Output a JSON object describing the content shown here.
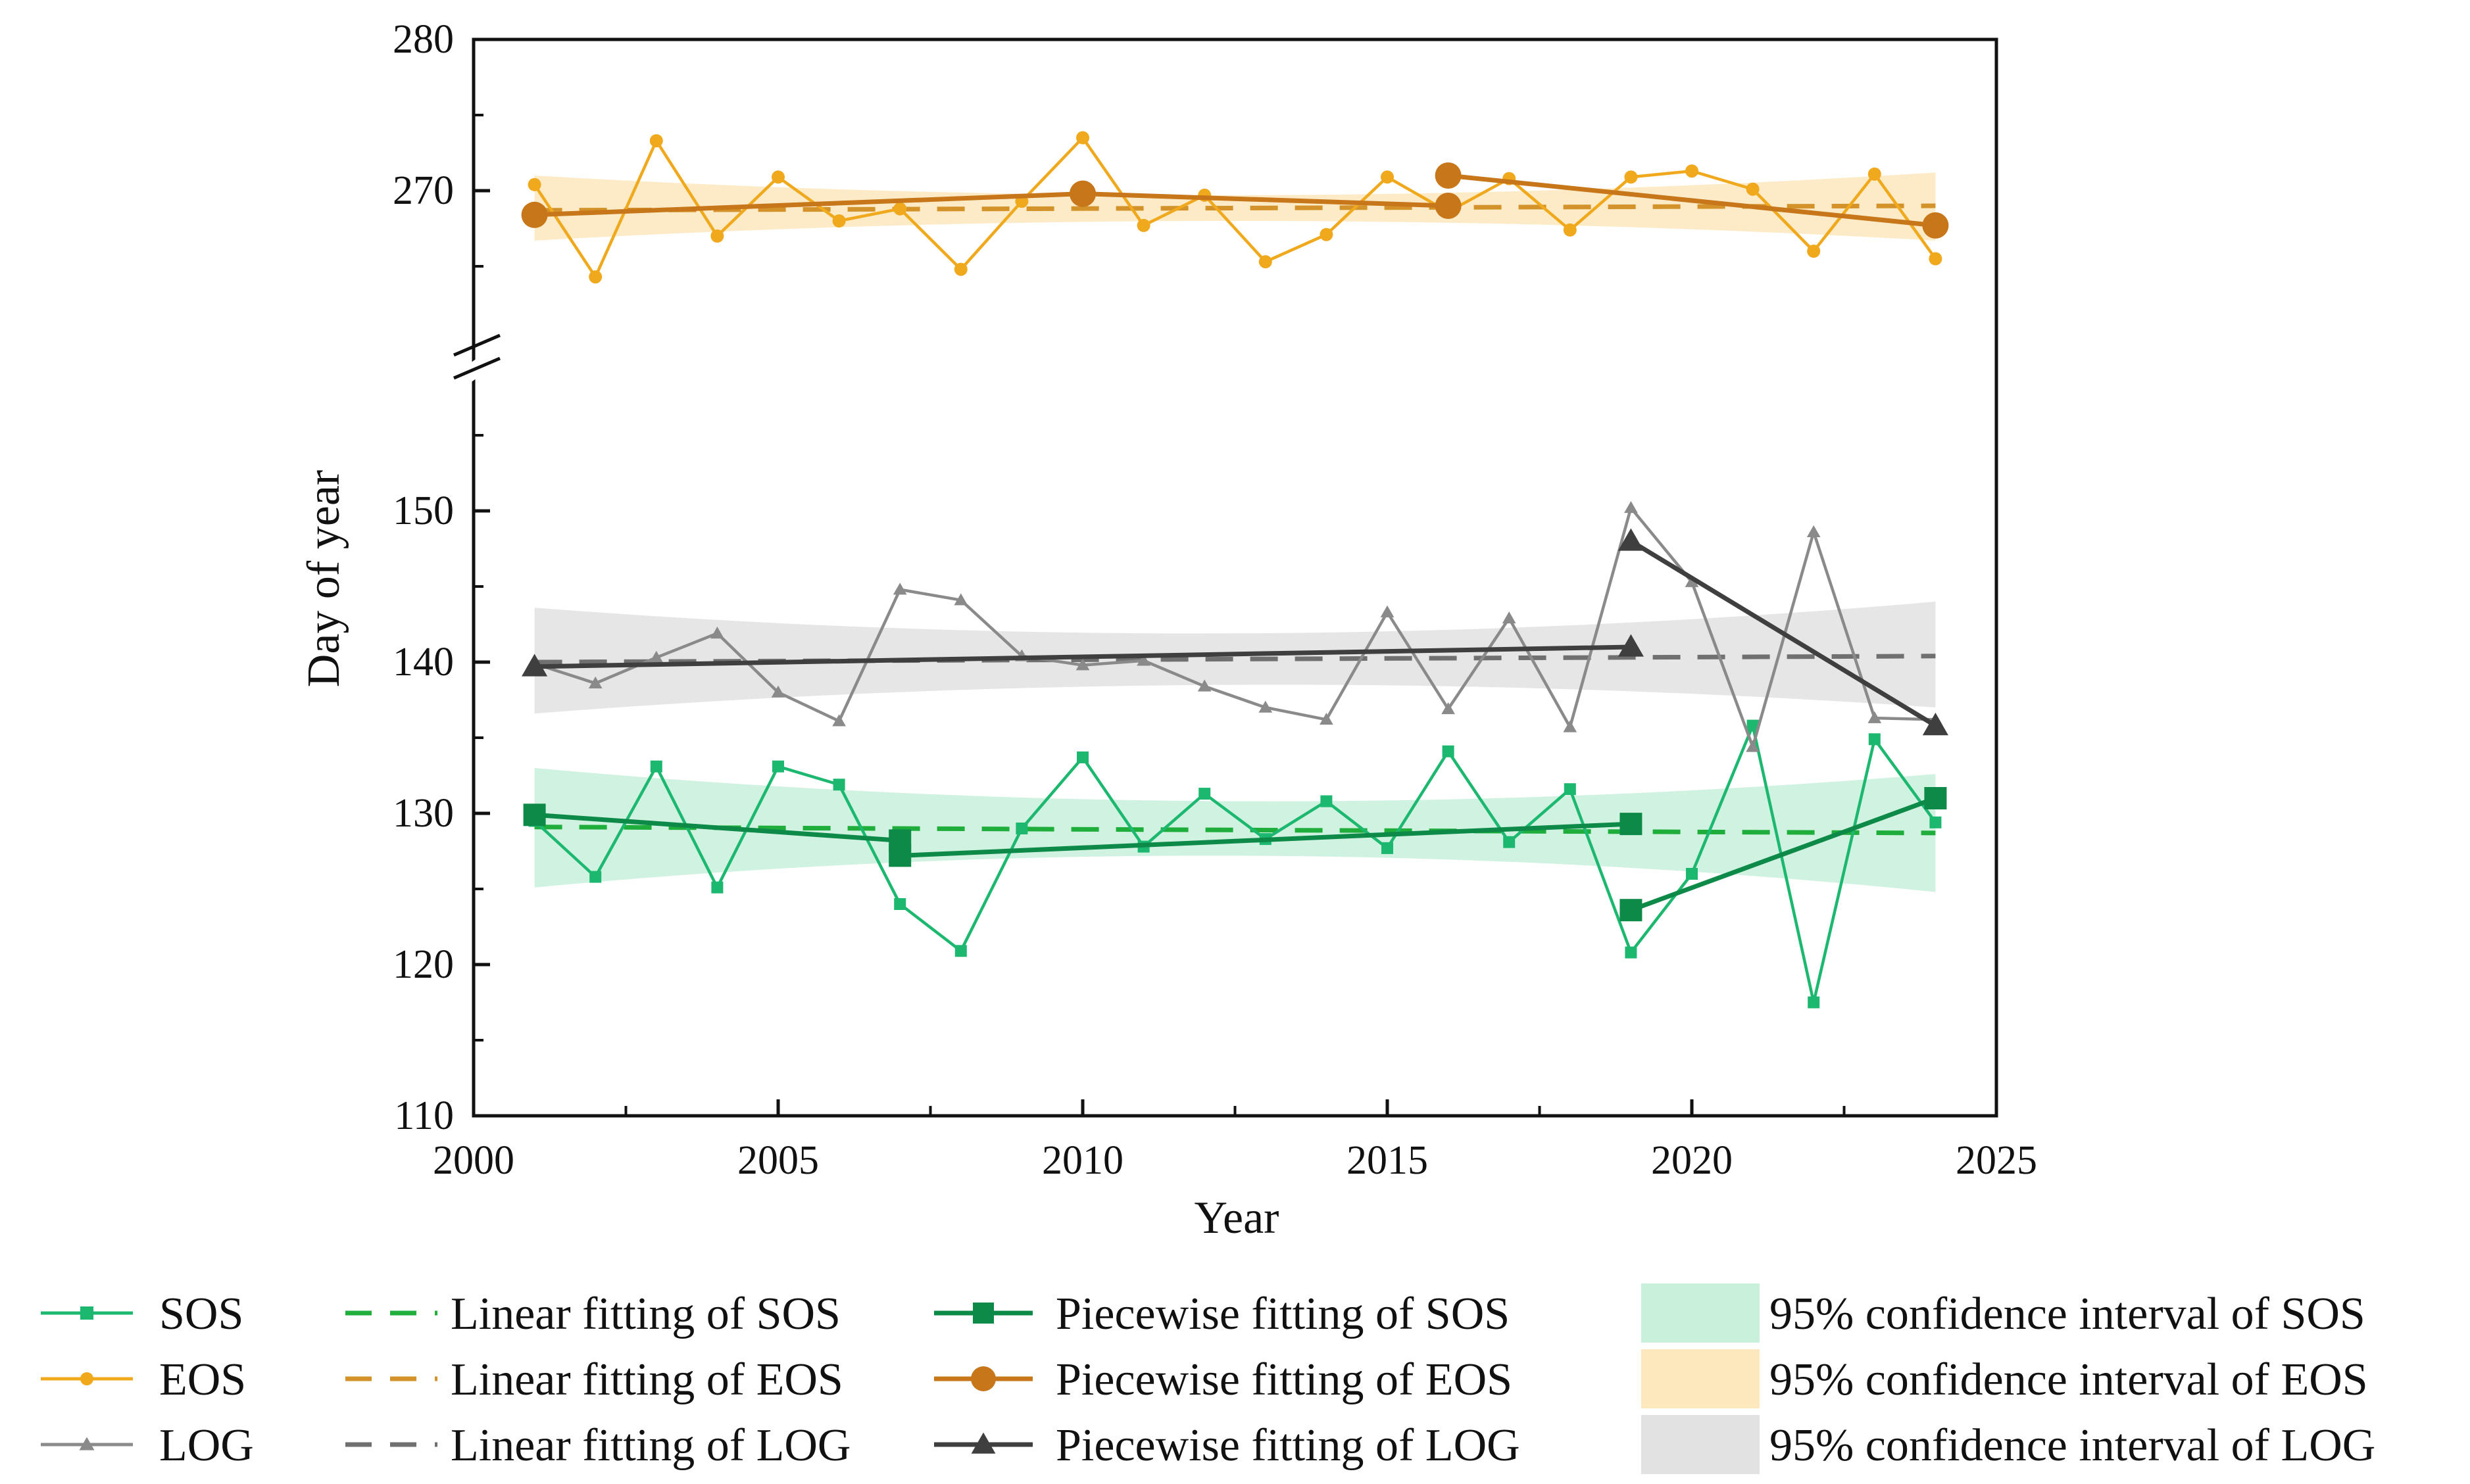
{
  "chart_data": {
    "type": "line",
    "title": "",
    "xlabel": "Year",
    "ylabel": "Day of year",
    "xlim": [
      2000,
      2025
    ],
    "ylim_lower": [
      110,
      160
    ],
    "ylim_upper": [
      260,
      280
    ],
    "axis_break": "between 160 and 260",
    "x_ticks": [
      "2000",
      "2005",
      "2010",
      "2015",
      "2020",
      "2025"
    ],
    "y_ticks_lower": [
      "110",
      "120",
      "130",
      "140",
      "150"
    ],
    "y_ticks_upper": [
      "270",
      "280"
    ],
    "x": [
      2001,
      2002,
      2003,
      2004,
      2005,
      2006,
      2007,
      2008,
      2009,
      2010,
      2011,
      2012,
      2013,
      2014,
      2015,
      2016,
      2017,
      2018,
      2019,
      2020,
      2021,
      2022,
      2023,
      2024
    ],
    "series": [
      {
        "key": "sos",
        "name": "SOS",
        "color": "#1db870",
        "marker": "square",
        "values": [
          129.5,
          125.8,
          133.1,
          125.1,
          133.1,
          131.9,
          124.0,
          120.9,
          129.0,
          133.7,
          127.8,
          131.3,
          128.3,
          130.8,
          127.7,
          134.1,
          128.1,
          131.6,
          120.8,
          126.0,
          135.8,
          117.5,
          134.9,
          129.4
        ]
      },
      {
        "key": "eos",
        "name": "EOS",
        "color": "#f0a81c",
        "marker": "circle",
        "values": [
          270.4,
          264.3,
          273.3,
          267.0,
          270.9,
          268.0,
          268.8,
          264.8,
          269.3,
          273.5,
          267.7,
          269.7,
          265.3,
          267.1,
          270.9,
          268.6,
          270.8,
          267.4,
          270.9,
          271.3,
          270.1,
          266.0,
          271.1,
          265.5
        ]
      },
      {
        "key": "log",
        "name": "LOG",
        "color": "#8a8a8a",
        "marker": "triangle",
        "values": [
          139.9,
          138.6,
          140.3,
          141.9,
          138.0,
          136.1,
          144.8,
          144.1,
          140.4,
          139.8,
          140.1,
          138.4,
          137.0,
          136.2,
          143.3,
          136.9,
          142.9,
          135.7,
          150.2,
          145.3,
          134.4,
          148.6,
          136.3,
          136.2
        ]
      }
    ],
    "linear_fits": [
      {
        "key": "sos",
        "name": "Linear fitting of SOS",
        "color": "#1fae3c",
        "start": [
          2001,
          129.1
        ],
        "end": [
          2024,
          128.7
        ]
      },
      {
        "key": "eos",
        "name": "Linear fitting of EOS",
        "color": "#d4922a",
        "start": [
          2001,
          268.7
        ],
        "end": [
          2024,
          269.0
        ]
      },
      {
        "key": "log",
        "name": "Linear fitting of LOG",
        "color": "#707070",
        "start": [
          2001,
          140.0
        ],
        "end": [
          2024,
          140.4
        ]
      }
    ],
    "piecewise_fits": [
      {
        "key": "sos",
        "name": "Piecewise fitting of SOS",
        "color": "#0e8a48",
        "marker": "square",
        "segments": [
          [
            [
              2001,
              129.9
            ],
            [
              2007,
              128.2
            ]
          ],
          [
            [
              2007,
              127.2
            ],
            [
              2019,
              129.3
            ]
          ],
          [
            [
              2019,
              123.6
            ],
            [
              2024,
              131.0
            ]
          ]
        ]
      },
      {
        "key": "eos",
        "name": "Piecewise fitting of EOS",
        "color": "#c7761a",
        "marker": "circle",
        "segments": [
          [
            [
              2001,
              268.4
            ],
            [
              2010,
              269.8
            ]
          ],
          [
            [
              2010,
              269.8
            ],
            [
              2016,
              269.0
            ]
          ],
          [
            [
              2016,
              271.0
            ],
            [
              2024,
              267.7
            ]
          ]
        ]
      },
      {
        "key": "log",
        "name": "Piecewise fitting of LOG",
        "color": "#3f3f3f",
        "marker": "triangle",
        "segments": [
          [
            [
              2001,
              139.7
            ],
            [
              2019,
              141.0
            ]
          ],
          [
            [
              2019,
              148.0
            ],
            [
              2024,
              135.8
            ]
          ]
        ]
      }
    ],
    "confidence_bands": [
      {
        "key": "sos",
        "name": "95% confidence interval of SOS",
        "color": "#c8f0da",
        "lower": [
          [
            2001,
            125.1
          ],
          [
            2012.5,
            127.2
          ],
          [
            2024,
            124.8
          ]
        ],
        "upper": [
          [
            2001,
            133.0
          ],
          [
            2012.5,
            130.8
          ],
          [
            2024,
            132.6
          ]
        ]
      },
      {
        "key": "eos",
        "name": "95% confidence interval of EOS",
        "color": "#fce8bc",
        "lower": [
          [
            2001,
            266.7
          ],
          [
            2012.5,
            268.0
          ],
          [
            2024,
            266.7
          ]
        ],
        "upper": [
          [
            2001,
            271.0
          ],
          [
            2012.5,
            269.7
          ],
          [
            2024,
            271.2
          ]
        ]
      },
      {
        "key": "log",
        "name": "95% confidence interval of LOG",
        "color": "#e2e2e2",
        "lower": [
          [
            2001,
            136.6
          ],
          [
            2012.5,
            138.5
          ],
          [
            2024,
            137.0
          ]
        ],
        "upper": [
          [
            2001,
            143.6
          ],
          [
            2012.5,
            141.9
          ],
          [
            2024,
            144.0
          ]
        ]
      }
    ],
    "legend": {
      "position": "bottom",
      "columns": 4
    }
  }
}
